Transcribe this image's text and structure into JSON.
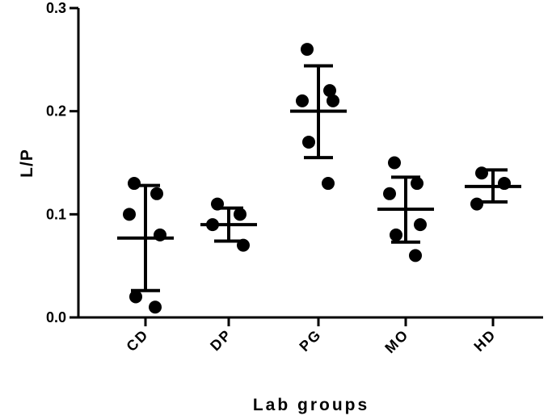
{
  "chart_data": {
    "type": "scatter",
    "title": "",
    "xlabel": "Lab groups",
    "ylabel": "L/P",
    "ylim": [
      0,
      0.3
    ],
    "yticks": [
      "0.0",
      "0.1",
      "0.2",
      "0.3"
    ],
    "categories": [
      "CD",
      "DP",
      "PG",
      "MO",
      "HD"
    ],
    "groups": [
      {
        "label": "CD",
        "points": [
          0.13,
          0.12,
          0.1,
          0.08,
          0.02,
          0.01
        ],
        "mean": 0.077,
        "error_low": 0.026,
        "error_high": 0.128
      },
      {
        "label": "DP",
        "points": [
          0.11,
          0.1,
          0.09,
          0.07
        ],
        "mean": 0.09,
        "error_low": 0.074,
        "error_high": 0.106
      },
      {
        "label": "PG",
        "points": [
          0.26,
          0.22,
          0.21,
          0.21,
          0.17,
          0.13
        ],
        "mean": 0.2,
        "error_low": 0.155,
        "error_high": 0.244
      },
      {
        "label": "MO",
        "points": [
          0.15,
          0.13,
          0.12,
          0.09,
          0.08,
          0.06
        ],
        "mean": 0.105,
        "error_low": 0.073,
        "error_high": 0.136
      },
      {
        "label": "HD",
        "points": [
          0.14,
          0.13,
          0.11
        ],
        "mean": 0.127,
        "error_low": 0.112,
        "error_high": 0.143
      }
    ],
    "grid": false,
    "legend": "none"
  }
}
